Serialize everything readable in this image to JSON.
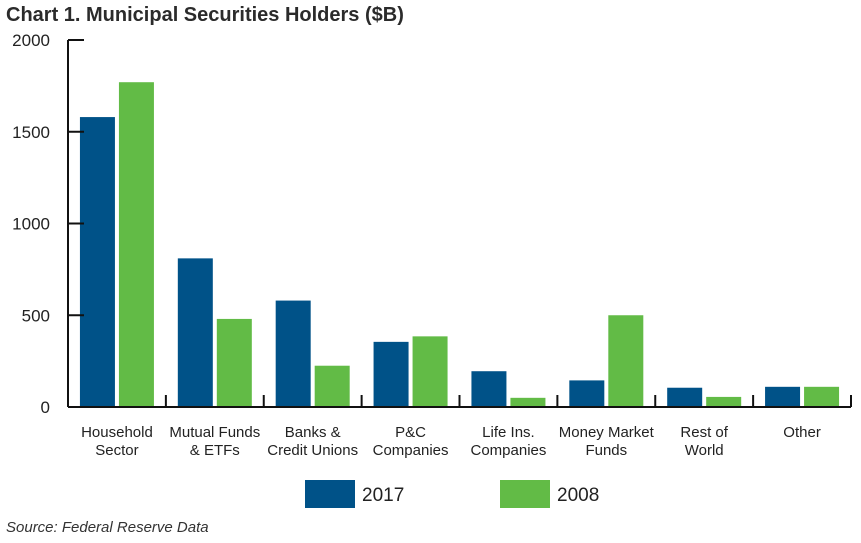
{
  "chart_data": {
    "type": "bar",
    "title": "Chart 1. Municipal Securities Holders ($B)",
    "source": "Source: Federal Reserve Data",
    "categories": [
      [
        "Household",
        "Sector"
      ],
      [
        "Mutual Funds",
        "& ETFs"
      ],
      [
        "Banks &",
        "Credit Unions"
      ],
      [
        "P&C",
        "Companies"
      ],
      [
        "Life Ins.",
        "Companies"
      ],
      [
        "Money Market",
        "Funds"
      ],
      [
        "Rest of",
        "World"
      ],
      [
        "Other"
      ]
    ],
    "series": [
      {
        "name": "2017",
        "color": "#005288",
        "values": [
          1580,
          810,
          580,
          355,
          195,
          145,
          105,
          110
        ]
      },
      {
        "name": "2008",
        "color": "#62bb46",
        "values": [
          1770,
          480,
          225,
          385,
          50,
          500,
          55,
          110
        ]
      }
    ],
    "yticks": [
      0,
      500,
      1000,
      1500,
      2000
    ],
    "ylim": [
      0,
      2000
    ],
    "xlabel": "",
    "ylabel": "",
    "grid": false,
    "legend": "bottom-center"
  }
}
